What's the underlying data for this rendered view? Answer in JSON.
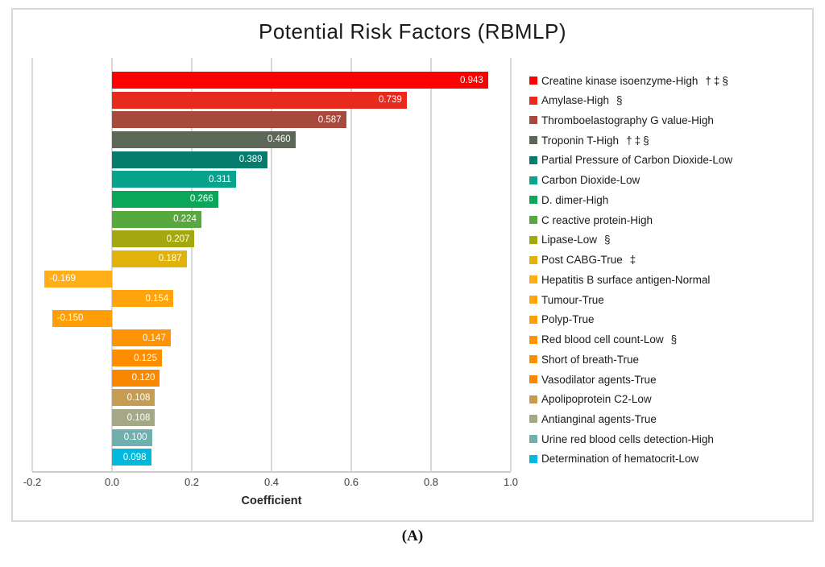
{
  "figure": {
    "title": "Potential Risk Factors (RBMLP)",
    "caption": "(A)"
  },
  "chart_data": {
    "type": "bar",
    "orientation": "horizontal",
    "title": "Potential Risk Factors (RBMLP)",
    "xlabel": "Coefficient",
    "xlim": [
      -0.2,
      1.0
    ],
    "xticks": [
      -0.2,
      0.0,
      0.2,
      0.4,
      0.6,
      0.8,
      1.0
    ],
    "xtick_labels": [
      "-0.2",
      "0.0",
      "0.2",
      "0.4",
      "0.6",
      "0.8",
      "1.0"
    ],
    "grid": true,
    "legend_position": "right",
    "value_labels_shown": true,
    "bars": [
      {
        "label": "Creatine kinase isoenzyme-High",
        "marks": "†‡§",
        "value": 0.943,
        "value_label": "0.943",
        "color": "#FF0000"
      },
      {
        "label": "Amylase-High",
        "marks": "§",
        "value": 0.739,
        "value_label": "0.739",
        "color": "#E8291E"
      },
      {
        "label": "Thromboelastography G value-High",
        "marks": "",
        "value": 0.587,
        "value_label": "0.587",
        "color": "#A8493E"
      },
      {
        "label": "Troponin T-High",
        "marks": "†‡§",
        "value": 0.46,
        "value_label": "0.460",
        "color": "#5D6757"
      },
      {
        "label": "Partial Pressure of Carbon Dioxide-Low",
        "marks": "",
        "value": 0.389,
        "value_label": "0.389",
        "color": "#047D6F"
      },
      {
        "label": "Carbon Dioxide-Low",
        "marks": "",
        "value": 0.311,
        "value_label": "0.311",
        "color": "#07A38D"
      },
      {
        "label": "D. dimer-High",
        "marks": "",
        "value": 0.266,
        "value_label": "0.266",
        "color": "#0BA65A"
      },
      {
        "label": "C reactive protein-High",
        "marks": "",
        "value": 0.224,
        "value_label": "0.224",
        "color": "#57A93F"
      },
      {
        "label": "Lipase-Low",
        "marks": "§",
        "value": 0.207,
        "value_label": "0.207",
        "color": "#A4A80F"
      },
      {
        "label": "Post CABG-True",
        "marks": "‡",
        "value": 0.187,
        "value_label": "0.187",
        "color": "#E0B20B"
      },
      {
        "label": "Hepatitis B surface antigen-Normal",
        "marks": "",
        "value": -0.169,
        "value_label": "-0.169",
        "color": "#FFAE17"
      },
      {
        "label": "Tumour-True",
        "marks": "",
        "value": 0.154,
        "value_label": "0.154",
        "color": "#FFA40C"
      },
      {
        "label": "Polyp-True",
        "marks": "",
        "value": -0.15,
        "value_label": "-0.150",
        "color": "#FF9E06"
      },
      {
        "label": "Red blood cell count-Low",
        "marks": "§",
        "value": 0.147,
        "value_label": "0.147",
        "color": "#FF9303"
      },
      {
        "label": "Short of breath-True",
        "marks": "",
        "value": 0.125,
        "value_label": "0.125",
        "color": "#FF8D00"
      },
      {
        "label": "Vasodilator agents-True",
        "marks": "",
        "value": 0.12,
        "value_label": "0.120",
        "color": "#F98800"
      },
      {
        "label": "Apolipoprotein C2-Low",
        "marks": "",
        "value": 0.108,
        "value_label": "0.108",
        "color": "#C69C52"
      },
      {
        "label": "Antianginal agents-True",
        "marks": "",
        "value": 0.108,
        "value_label": "0.108",
        "color": "#A4A887"
      },
      {
        "label": "Urine red blood cells detection-High",
        "marks": "",
        "value": 0.1,
        "value_label": "0.100",
        "color": "#6FAFAD"
      },
      {
        "label": "Determination of hematocrit-Low",
        "marks": "",
        "value": 0.098,
        "value_label": "0.098",
        "color": "#00B9DC"
      }
    ],
    "colors": {
      "grid": "#D9D9D9",
      "figure_border": "#D9D9D9",
      "axis_line": "#CCCCCC",
      "value_label_text": "#FFFFFF"
    }
  }
}
